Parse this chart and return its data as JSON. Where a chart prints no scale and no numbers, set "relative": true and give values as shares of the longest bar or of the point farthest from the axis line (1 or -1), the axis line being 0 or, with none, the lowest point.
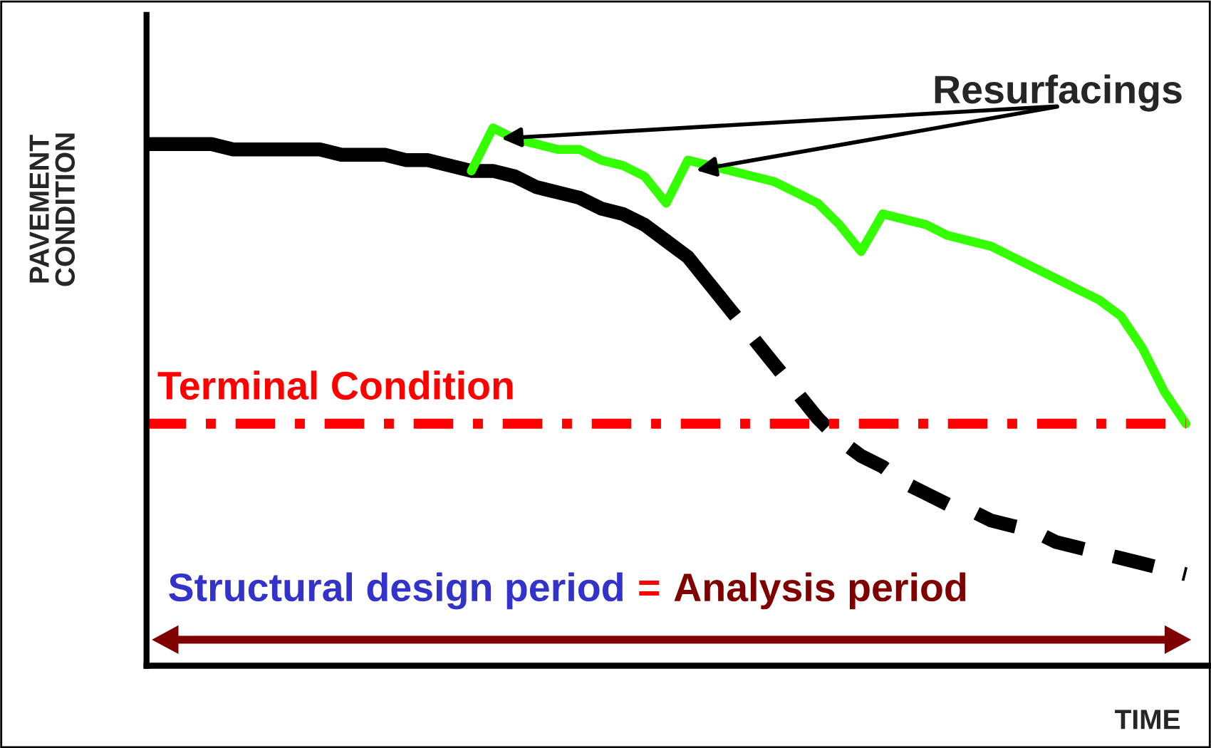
{
  "chart_data": {
    "type": "line",
    "relative": true,
    "ylabel": "PAVEMENT CONDITION",
    "xlabel": "TIME",
    "categories": [
      null,
      null,
      null,
      null,
      null,
      null,
      null,
      null,
      null,
      null,
      null,
      null,
      null,
      null,
      null,
      null,
      null,
      null,
      null,
      null,
      null,
      null,
      null,
      null,
      null,
      null,
      null,
      null,
      null,
      null,
      null,
      null,
      null,
      null,
      null,
      null,
      null,
      null,
      null,
      null,
      null,
      null,
      null,
      null,
      null,
      null,
      null,
      null,
      null
    ],
    "series": [
      {
        "color": "#000000",
        "line_style": "solid",
        "values": [
          0.97,
          0.97,
          0.97,
          0.97,
          0.96,
          0.96,
          0.96,
          0.96,
          0.96,
          0.95,
          0.95,
          0.95,
          0.94,
          0.94,
          0.93,
          0.92,
          0.92,
          0.91,
          0.89,
          0.88,
          0.87,
          0.85,
          0.84,
          0.82,
          0.79,
          0.76,
          0.71,
          null,
          null,
          null,
          null,
          null,
          null,
          null,
          null,
          null,
          null,
          null,
          null,
          null,
          null,
          null,
          null,
          null,
          null,
          null,
          null,
          null,
          null
        ]
      },
      {
        "color": "#000000",
        "line_style": "dashed",
        "values": [
          null,
          null,
          null,
          null,
          null,
          null,
          null,
          null,
          null,
          null,
          null,
          null,
          null,
          null,
          null,
          null,
          null,
          null,
          null,
          null,
          null,
          null,
          null,
          null,
          null,
          null,
          0.71,
          0.66,
          0.61,
          0.56,
          0.51,
          0.46,
          0.42,
          0.39,
          0.37,
          0.34,
          0.32,
          0.3,
          0.29,
          0.27,
          0.26,
          0.25,
          0.23,
          0.22,
          0.21,
          0.2,
          0.19,
          0.18,
          0.17
        ]
      },
      {
        "color": "#33ff00",
        "line_style": "solid",
        "values": [
          null,
          null,
          null,
          null,
          null,
          null,
          null,
          null,
          null,
          null,
          null,
          null,
          null,
          null,
          null,
          0.92,
          1.0,
          0.98,
          0.97,
          0.96,
          0.96,
          0.94,
          0.93,
          0.91,
          0.86,
          0.94,
          0.93,
          0.92,
          0.91,
          0.9,
          0.88,
          0.86,
          0.82,
          0.77,
          0.84,
          0.83,
          0.82,
          0.8,
          0.79,
          0.78,
          0.76,
          0.74,
          0.72,
          0.7,
          0.68,
          0.65,
          0.59,
          0.51,
          0.45
        ]
      }
    ],
    "ref_lines": [
      {
        "axis": "y",
        "value": 0.45,
        "label": "Terminal Condition",
        "color": "#ff0000",
        "line_style": "dashdot"
      }
    ],
    "annotations": [
      "Resurfacings",
      "Structural design period",
      "=",
      "Analysis period"
    ]
  }
}
